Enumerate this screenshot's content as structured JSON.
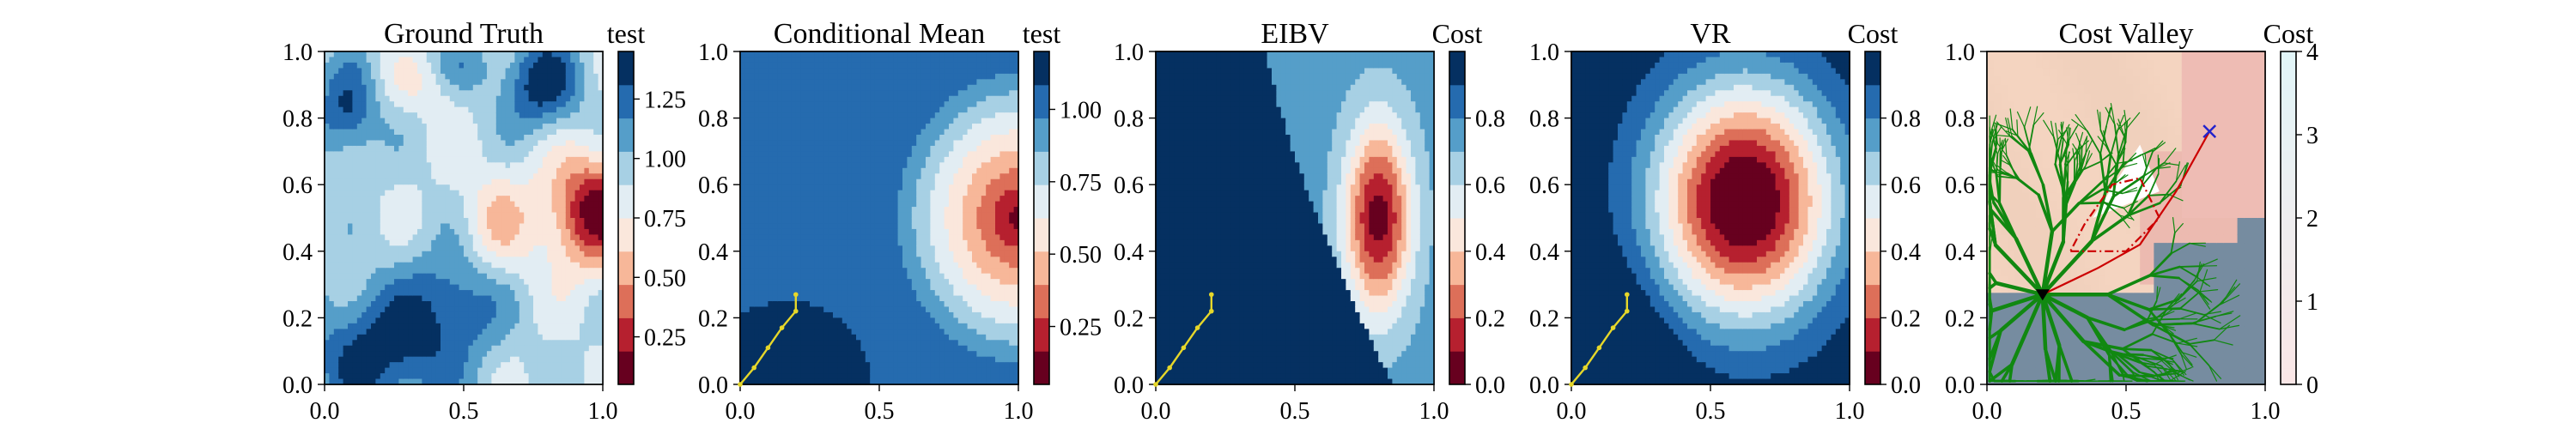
{
  "chart_data": [
    {
      "type": "heatmap",
      "title": "Ground Truth",
      "colorbar_label": "test",
      "xlim": [
        0,
        1
      ],
      "ylim": [
        0,
        1
      ],
      "x_ticks": [
        "0.0",
        "0.5",
        "1.0"
      ],
      "y_ticks": [
        "0.0",
        "0.2",
        "0.4",
        "0.6",
        "0.8",
        "1.0"
      ],
      "colorbar_ticks": [
        "0.25",
        "0.50",
        "0.75",
        "1.00",
        "1.25"
      ],
      "colorbar_tick_values": [
        0.25,
        0.5,
        0.75,
        1.0,
        1.25
      ],
      "colorbar_range": [
        0.05,
        1.45
      ],
      "levels": 10,
      "field_hint": "low-valued blob in lower-left, deep minimum near (0.95, 0.5), patchy high values top and lower middle"
    },
    {
      "type": "heatmap",
      "title": "Conditional Mean",
      "colorbar_label": "test",
      "xlim": [
        0,
        1
      ],
      "ylim": [
        0,
        1
      ],
      "x_ticks": [
        "0.0",
        "0.5",
        "1.0"
      ],
      "y_ticks": [
        "0.0",
        "0.2",
        "0.4",
        "0.6",
        "0.8",
        "1.0"
      ],
      "colorbar_ticks": [
        "0.25",
        "0.50",
        "0.75",
        "1.00"
      ],
      "colorbar_tick_values": [
        0.25,
        0.5,
        0.75,
        1.0
      ],
      "colorbar_range": [
        0.05,
        1.2
      ],
      "levels": 10,
      "path": [
        [
          0.0,
          0.0
        ],
        [
          0.05,
          0.05
        ],
        [
          0.1,
          0.11
        ],
        [
          0.15,
          0.17
        ],
        [
          0.2,
          0.22
        ],
        [
          0.2,
          0.27
        ]
      ],
      "path_color": "#e6d72a"
    },
    {
      "type": "heatmap",
      "title": "EIBV",
      "colorbar_label": "Cost",
      "xlim": [
        0,
        1
      ],
      "ylim": [
        0,
        1
      ],
      "x_ticks": [
        "0.0",
        "0.5",
        "1.0"
      ],
      "y_ticks": [
        "0.0",
        "0.2",
        "0.4",
        "0.6",
        "0.8",
        "1.0"
      ],
      "colorbar_ticks": [
        "0.0",
        "0.2",
        "0.4",
        "0.6",
        "0.8"
      ],
      "colorbar_tick_values": [
        0.0,
        0.2,
        0.4,
        0.6,
        0.8
      ],
      "colorbar_range": [
        0.0,
        1.0
      ],
      "levels": 10,
      "path": [
        [
          0.0,
          0.0
        ],
        [
          0.05,
          0.05
        ],
        [
          0.1,
          0.11
        ],
        [
          0.15,
          0.17
        ],
        [
          0.2,
          0.22
        ],
        [
          0.2,
          0.27
        ]
      ],
      "path_color": "#e6d72a"
    },
    {
      "type": "heatmap",
      "title": "VR",
      "colorbar_label": "Cost",
      "xlim": [
        0,
        1
      ],
      "ylim": [
        0,
        1
      ],
      "x_ticks": [
        "0.0",
        "0.5",
        "1.0"
      ],
      "y_ticks": [
        "0.0",
        "0.2",
        "0.4",
        "0.6",
        "0.8",
        "1.0"
      ],
      "colorbar_ticks": [
        "0.0",
        "0.2",
        "0.4",
        "0.6",
        "0.8"
      ],
      "colorbar_tick_values": [
        0.0,
        0.2,
        0.4,
        0.6,
        0.8
      ],
      "colorbar_range": [
        0.0,
        1.0
      ],
      "levels": 10,
      "path": [
        [
          0.0,
          0.0
        ],
        [
          0.05,
          0.05
        ],
        [
          0.1,
          0.11
        ],
        [
          0.15,
          0.17
        ],
        [
          0.2,
          0.22
        ],
        [
          0.2,
          0.27
        ]
      ],
      "path_color": "#e6d72a"
    },
    {
      "type": "heatmap",
      "title": "Cost Valley",
      "colorbar_label": "Cost",
      "xlim": [
        0,
        1
      ],
      "ylim": [
        0,
        1
      ],
      "x_ticks": [
        "0.0",
        "0.5",
        "1.0"
      ],
      "y_ticks": [
        "0.0",
        "0.2",
        "0.4",
        "0.6",
        "0.8",
        "1.0"
      ],
      "colorbar_ticks": [
        "0",
        "1",
        "2",
        "3",
        "4"
      ],
      "colorbar_tick_values": [
        0,
        1,
        2,
        3,
        4
      ],
      "colorbar_range": [
        0,
        4
      ],
      "tree_root": [
        0.2,
        0.27
      ],
      "tree_color": "#118811",
      "best_path_color": "#cc0000",
      "goal_marker": [
        0.8,
        0.76
      ],
      "goal_color": "#2222cc",
      "budget_polygon": [
        [
          0.3,
          0.4
        ],
        [
          0.5,
          0.4
        ],
        [
          0.62,
          0.5
        ],
        [
          0.55,
          0.62
        ],
        [
          0.45,
          0.6
        ],
        [
          0.35,
          0.48
        ]
      ],
      "polygon_color": "#cc0000"
    }
  ]
}
